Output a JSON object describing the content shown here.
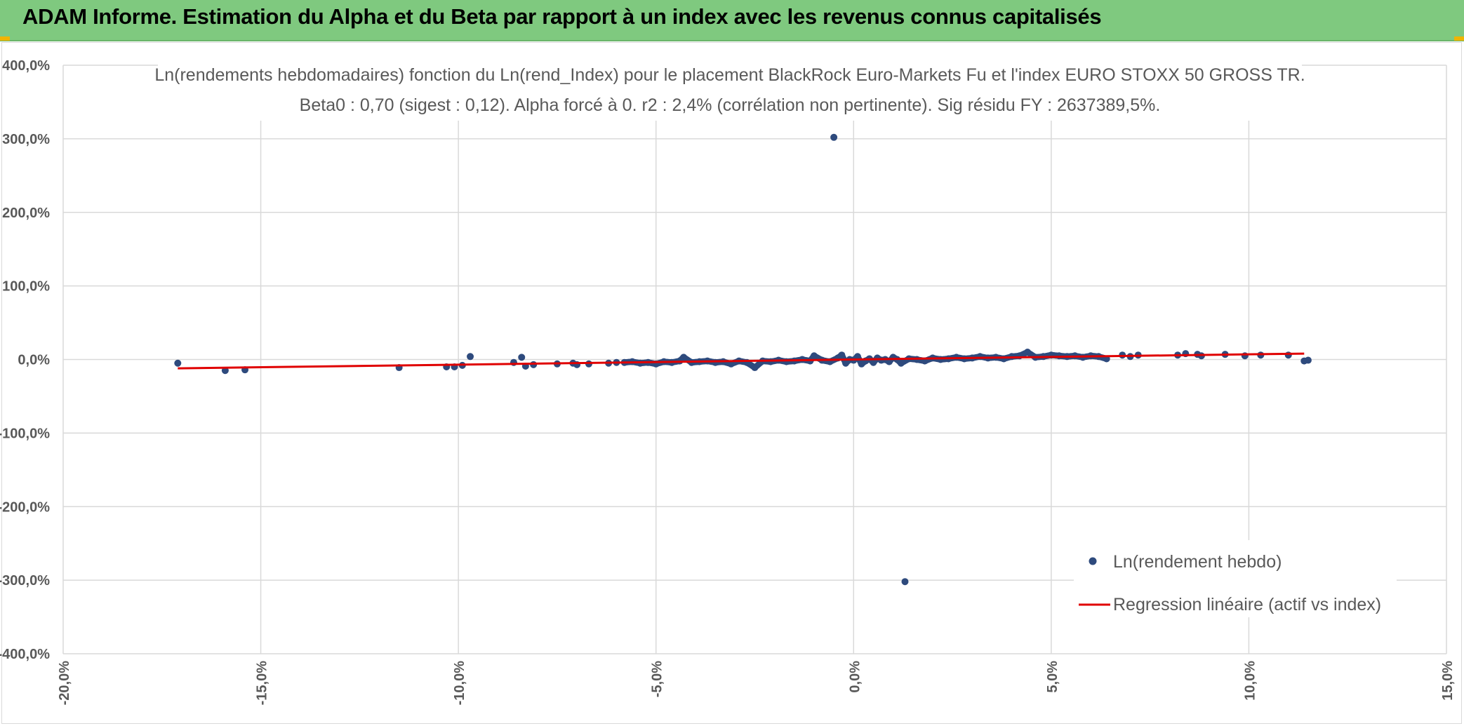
{
  "banner": {
    "title": "ADAM Informe. Estimation du Alpha et du Beta par rapport à un index avec les revenus connus capitalisés"
  },
  "colors": {
    "banner": "#7fc97f",
    "points": "#2e4a7d",
    "regression": "#e00000",
    "grid": "#d9d9d9",
    "text": "#595959"
  },
  "chart_data": {
    "type": "scatter",
    "title": "Ln(rendements hebdomadaires) fonction du Ln(rend_Index) pour le placement BlackRock Euro-Markets Fu et l'index EURO STOXX 50 GROSS TR.",
    "subtitle": "Beta0 : 0,70 (sigest : 0,12). Alpha forcé à 0. r2 : 2,4% (corrélation non pertinente). Sig résidu FY : 2637389,5%.",
    "xlabel": "",
    "ylabel": "",
    "xlim": [
      -0.2,
      0.15
    ],
    "ylim": [
      -4.0,
      4.0
    ],
    "x_ticks": [
      -0.2,
      -0.15,
      -0.1,
      -0.05,
      0.0,
      0.05,
      0.1,
      0.15
    ],
    "x_tick_labels": [
      "-20,0%",
      "-15,0%",
      "-10,0%",
      "-5,0%",
      "0,0%",
      "5,0%",
      "10,0%",
      "15,0%"
    ],
    "y_ticks": [
      4.0,
      3.0,
      2.0,
      1.0,
      0.0,
      -1.0,
      -2.0,
      -3.0,
      -4.0
    ],
    "y_tick_labels": [
      "400,0%",
      "300,0%",
      "200,0%",
      "100,0%",
      "0,0%",
      "-100,0%",
      "-200,0%",
      "-300,0%",
      "-400,0%"
    ],
    "grid": true,
    "legend_position": "bottom-right",
    "series": [
      {
        "name": "Ln(rendement hebdo)",
        "kind": "points",
        "points": [
          [
            -0.171,
            -0.05
          ],
          [
            -0.159,
            -0.15
          ],
          [
            -0.154,
            -0.14
          ],
          [
            -0.115,
            -0.11
          ],
          [
            -0.103,
            -0.1
          ],
          [
            -0.101,
            -0.1
          ],
          [
            -0.099,
            -0.08
          ],
          [
            -0.097,
            0.04
          ],
          [
            -0.086,
            -0.04
          ],
          [
            -0.084,
            0.03
          ],
          [
            -0.083,
            -0.09
          ],
          [
            -0.081,
            -0.07
          ],
          [
            -0.075,
            -0.06
          ],
          [
            -0.071,
            -0.05
          ],
          [
            -0.07,
            -0.07
          ],
          [
            -0.067,
            -0.06
          ],
          [
            -0.062,
            -0.05
          ],
          [
            -0.06,
            -0.04
          ],
          [
            -0.058,
            -0.04
          ],
          [
            -0.056,
            -0.03
          ],
          [
            -0.054,
            -0.05
          ],
          [
            -0.052,
            -0.04
          ],
          [
            -0.05,
            -0.06
          ],
          [
            -0.048,
            -0.03
          ],
          [
            -0.046,
            -0.04
          ],
          [
            -0.044,
            -0.02
          ],
          [
            -0.043,
            0.03
          ],
          [
            -0.041,
            -0.04
          ],
          [
            -0.039,
            -0.03
          ],
          [
            -0.037,
            -0.02
          ],
          [
            -0.035,
            -0.04
          ],
          [
            -0.033,
            -0.03
          ],
          [
            -0.031,
            -0.06
          ],
          [
            -0.029,
            -0.02
          ],
          [
            -0.027,
            -0.04
          ],
          [
            -0.025,
            -0.11
          ],
          [
            -0.023,
            -0.02
          ],
          [
            -0.021,
            -0.03
          ],
          [
            -0.019,
            -0.01
          ],
          [
            -0.017,
            -0.03
          ],
          [
            -0.015,
            -0.02
          ],
          [
            -0.013,
            0.0
          ],
          [
            -0.011,
            -0.02
          ],
          [
            -0.01,
            0.05
          ],
          [
            -0.008,
            -0.01
          ],
          [
            -0.006,
            -0.03
          ],
          [
            -0.005,
            3.02
          ],
          [
            -0.004,
            0.02
          ],
          [
            -0.003,
            0.06
          ],
          [
            -0.002,
            -0.05
          ],
          [
            -0.001,
            0.0
          ],
          [
            0.0,
            -0.01
          ],
          [
            0.001,
            0.04
          ],
          [
            0.002,
            -0.06
          ],
          [
            0.003,
            -0.02
          ],
          [
            0.004,
            0.01
          ],
          [
            0.005,
            -0.04
          ],
          [
            0.006,
            0.02
          ],
          [
            0.007,
            -0.01
          ],
          [
            0.008,
            0.0
          ],
          [
            0.009,
            -0.03
          ],
          [
            0.01,
            0.03
          ],
          [
            0.011,
            0.0
          ],
          [
            0.012,
            -0.05
          ],
          [
            0.013,
            -3.02
          ],
          [
            0.014,
            0.01
          ],
          [
            0.016,
            0.0
          ],
          [
            0.018,
            -0.02
          ],
          [
            0.02,
            0.02
          ],
          [
            0.022,
            0.0
          ],
          [
            0.024,
            0.01
          ],
          [
            0.026,
            0.03
          ],
          [
            0.028,
            0.01
          ],
          [
            0.03,
            0.02
          ],
          [
            0.032,
            0.04
          ],
          [
            0.034,
            0.02
          ],
          [
            0.036,
            0.03
          ],
          [
            0.038,
            0.01
          ],
          [
            0.04,
            0.04
          ],
          [
            0.042,
            0.05
          ],
          [
            0.044,
            0.1
          ],
          [
            0.046,
            0.03
          ],
          [
            0.048,
            0.04
          ],
          [
            0.05,
            0.06
          ],
          [
            0.052,
            0.05
          ],
          [
            0.054,
            0.04
          ],
          [
            0.056,
            0.05
          ],
          [
            0.058,
            0.03
          ],
          [
            0.06,
            0.05
          ],
          [
            0.062,
            0.04
          ],
          [
            0.064,
            0.01
          ],
          [
            0.068,
            0.06
          ],
          [
            0.07,
            0.04
          ],
          [
            0.072,
            0.06
          ],
          [
            0.082,
            0.06
          ],
          [
            0.084,
            0.08
          ],
          [
            0.087,
            0.07
          ],
          [
            0.088,
            0.05
          ],
          [
            0.094,
            0.07
          ],
          [
            0.099,
            0.05
          ],
          [
            0.103,
            0.06
          ],
          [
            0.11,
            0.06
          ],
          [
            0.114,
            -0.02
          ],
          [
            0.115,
            -0.01
          ]
        ]
      },
      {
        "name": "Regression linéaire (actif vs index)",
        "kind": "line",
        "points": [
          [
            -0.171,
            -0.12
          ],
          [
            0.114,
            0.08
          ]
        ]
      }
    ]
  }
}
